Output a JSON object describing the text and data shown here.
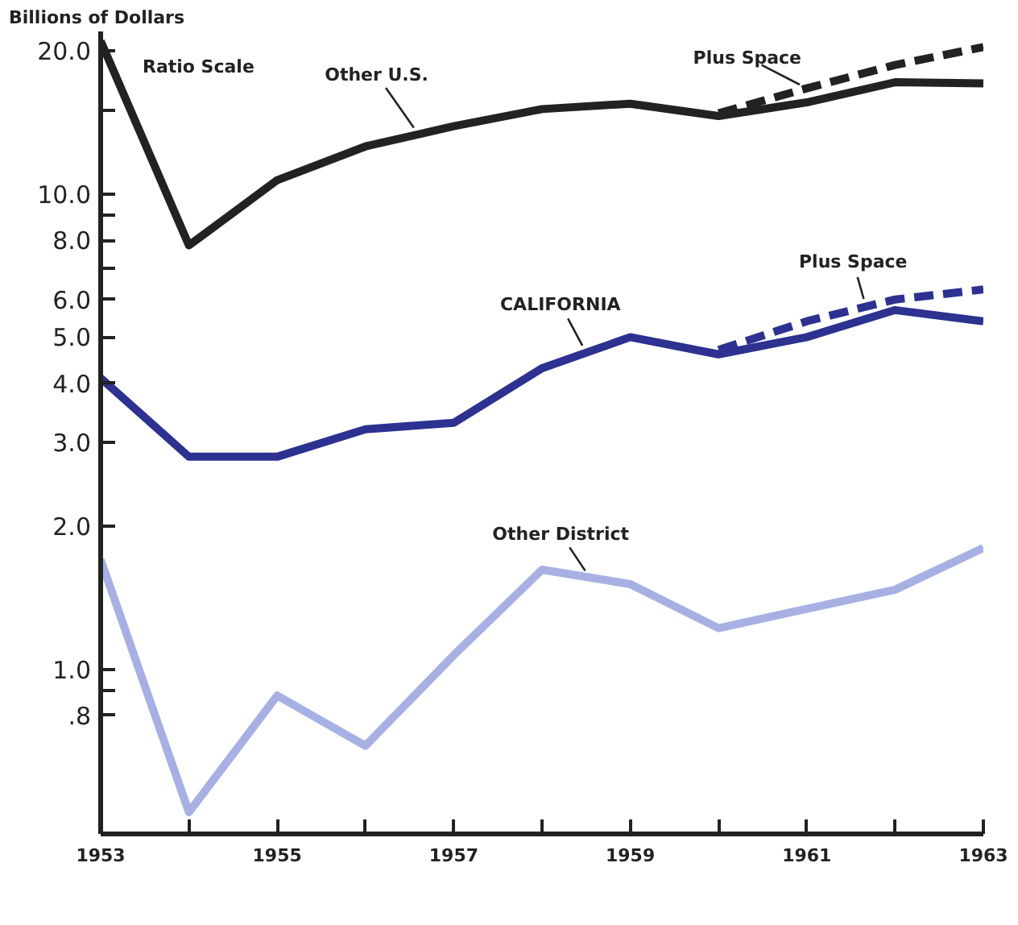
{
  "chart_data": {
    "type": "line",
    "ylabel": "Billions of Dollars",
    "annotations": [
      "Ratio Scale"
    ],
    "x": [
      1953,
      1954,
      1955,
      1956,
      1957,
      1958,
      1959,
      1960,
      1961,
      1962,
      1963
    ],
    "series": [
      {
        "name": "Other U.S.",
        "color": "#222220",
        "values": [
          21,
          7.8,
          10.7,
          12.6,
          13.9,
          15.1,
          15.5,
          14.6,
          15.6,
          17.2,
          17.1
        ]
      },
      {
        "name": "Plus Space",
        "color": "#222220",
        "line_style": "dashed",
        "x": [
          1960,
          1961,
          1962,
          1963
        ],
        "values": [
          14.8,
          16.7,
          18.7,
          20.4
        ]
      },
      {
        "name": "CALIFORNIA",
        "color": "#2d3190",
        "values": [
          4.1,
          2.8,
          2.8,
          3.2,
          3.3,
          4.3,
          5.0,
          4.6,
          5.0,
          5.7,
          5.4
        ]
      },
      {
        "name": "Plus Space",
        "color": "#2d3190",
        "line_style": "dashed",
        "x": [
          1960,
          1961,
          1962,
          1963
        ],
        "values": [
          4.7,
          5.4,
          6.0,
          6.3
        ]
      },
      {
        "name": "Other District",
        "color": "#a7b0e3",
        "values": [
          1.7,
          0.5,
          0.88,
          0.69,
          1.07,
          1.62,
          1.51,
          1.22,
          1.34,
          1.47,
          1.8
        ]
      }
    ],
    "xlim": [
      1953,
      1963
    ],
    "ylim": [
      0.45,
      22
    ],
    "xticks": [
      1953,
      {
        "value": 1954,
        "label": null
      },
      1955,
      {
        "value": 1956,
        "label": null
      },
      1957,
      {
        "value": 1958,
        "label": null
      },
      1959,
      {
        "value": 1960,
        "label": null
      },
      1961,
      {
        "value": 1962,
        "label": null
      },
      1963
    ],
    "yticks": [
      {
        "value": 0.8,
        "label": ".8"
      },
      {
        "value": 0.9,
        "label": null
      },
      {
        "value": 1,
        "label": "1.0"
      },
      {
        "value": 2,
        "label": "2.0"
      },
      {
        "value": 3,
        "label": "3.0"
      },
      {
        "value": 4,
        "label": "4.0"
      },
      {
        "value": 5,
        "label": "5.0"
      },
      {
        "value": 6,
        "label": "6.0"
      },
      {
        "value": 7,
        "label": null
      },
      {
        "value": 8,
        "label": "8.0"
      },
      {
        "value": 9,
        "label": null
      },
      {
        "value": 10,
        "label": "10.0"
      },
      {
        "value": 15,
        "label": null
      },
      {
        "value": 20,
        "label": "20.0"
      }
    ],
    "log": true,
    "grid": false,
    "legend": false,
    "line_style": "solid"
  }
}
